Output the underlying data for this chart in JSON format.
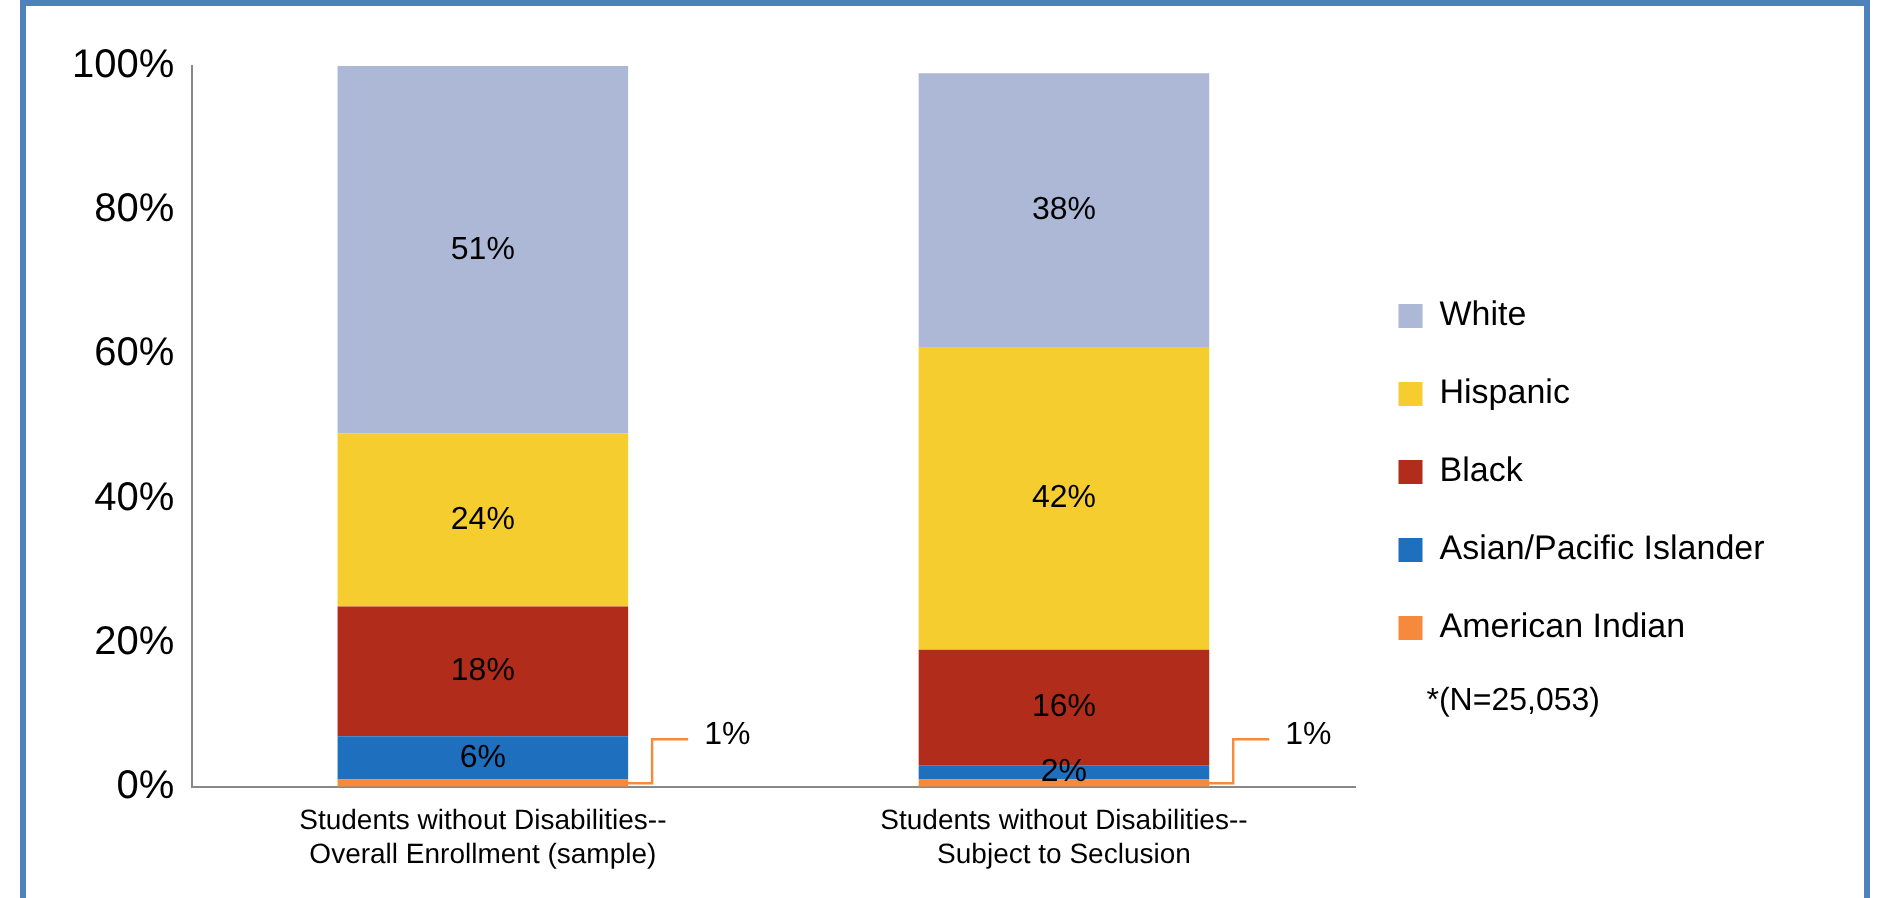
{
  "chart_data": {
    "type": "bar",
    "stacked": true,
    "categories": [
      "Students without Disabilities--Overall Enrollment (sample)",
      "Students without Disabilities--Subject to Seclusion"
    ],
    "series": [
      {
        "name": "American Indian",
        "color": "#f58a3c",
        "values": [
          1,
          1
        ],
        "value_labels": [
          "1%",
          "1%"
        ]
      },
      {
        "name": "Asian/Pacific Islander",
        "color": "#1f6fbf",
        "values": [
          6,
          2
        ],
        "value_labels": [
          "6%",
          "2%"
        ]
      },
      {
        "name": "Black",
        "color": "#b12c1a",
        "values": [
          18,
          16
        ],
        "value_labels": [
          "18%",
          "16%"
        ]
      },
      {
        "name": "Hispanic",
        "color": "#f5cd2f",
        "values": [
          24,
          42
        ],
        "value_labels": [
          "24%",
          "42%"
        ]
      },
      {
        "name": "White",
        "color": "#adb7d6",
        "values": [
          51,
          38
        ],
        "value_labels": [
          "51%",
          "38%"
        ]
      }
    ],
    "ylim": [
      0,
      100
    ],
    "yticks": [
      {
        "value": 0,
        "label": "0%"
      },
      {
        "value": 20,
        "label": "20%"
      },
      {
        "value": 40,
        "label": "40%"
      },
      {
        "value": 60,
        "label": "60%"
      },
      {
        "value": 80,
        "label": "80%"
      },
      {
        "value": 100,
        "label": "100%"
      }
    ],
    "grid": false,
    "legend": "right",
    "annotations": [
      "*(N=25,053)"
    ]
  }
}
